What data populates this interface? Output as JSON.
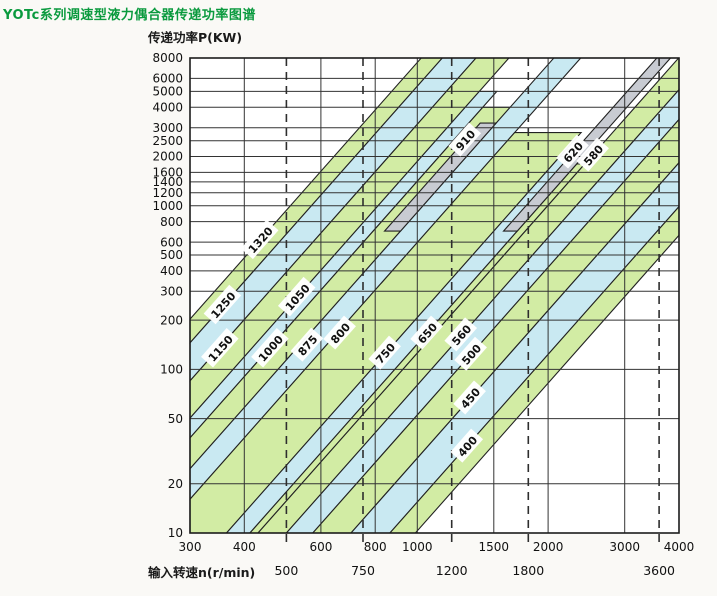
{
  "page_title": "YOTc系列调速型液力偶合器传递功率图谱",
  "chart_data": {
    "type": "area",
    "title": "YOTc系列调速型液力偶合器传递功率图谱",
    "xlabel": "输入转速n(r/min)",
    "ylabel": "传递功率P(KW)",
    "x_axis": {
      "min": 300,
      "max": 4000,
      "scale": "log",
      "ticks_major": [
        300,
        400,
        600,
        800,
        1000,
        1500,
        2000,
        3000,
        4000
      ],
      "ticks_dashed": [
        500,
        750,
        1200,
        1800,
        3600
      ]
    },
    "y_axis": {
      "min": 10,
      "max": 8000,
      "scale": "log",
      "ticks": [
        8000,
        6000,
        5000,
        4000,
        3000,
        2500,
        2000,
        1600,
        1400,
        1200,
        1000,
        800,
        600,
        500,
        400,
        300,
        200,
        100,
        50,
        20,
        10
      ]
    },
    "grid": true,
    "band_slope_exponent": 3,
    "legend_note": "each diagonal band = one coupling size; P = 10*(n/n10)^3 between n10_from and n10_to",
    "bands": [
      {
        "model": "1320",
        "color": "green",
        "n10_from": 110,
        "n10_to": 123,
        "min_kw": 10,
        "max_kw": 8000,
        "label_at": [
          435,
          620
        ]
      },
      {
        "model": "1250",
        "color": "blue",
        "n10_from": 123,
        "n10_to": 147,
        "min_kw": 10,
        "max_kw": 8000,
        "label_at": [
          357,
          248
        ]
      },
      {
        "model": "1150",
        "color": "green",
        "n10_from": 147,
        "n10_to": 175,
        "min_kw": 10,
        "max_kw": 8000,
        "label_at": [
          352,
          135
        ]
      },
      {
        "model": "1050",
        "color": "blue",
        "n10_from": 175,
        "n10_to": 192,
        "min_kw": 10,
        "max_kw": 5000,
        "label_at": [
          529,
          277
        ]
      },
      {
        "model": "1000",
        "color": "green",
        "n10_from": 192,
        "n10_to": 222,
        "min_kw": 10,
        "max_kw": 4000,
        "label_at": [
          459,
          135
        ]
      },
      {
        "model": "875",
        "color": "blue",
        "n10_from": 222,
        "n10_to": 256,
        "min_kw": 10,
        "max_kw": 8000,
        "label_at": [
          558,
          141
        ]
      },
      {
        "model": "800",
        "color": "green",
        "n10_from": 256,
        "n10_to": 364,
        "min_kw": 10,
        "max_kw": 2800,
        "label_at": [
          664,
          167
        ]
      },
      {
        "model": "750",
        "color": "blue",
        "n10_from": 364,
        "n10_to": 412,
        "min_kw": 10,
        "max_kw": 2200,
        "label_at": [
          843,
          126
        ]
      },
      {
        "model": "650",
        "color": "green",
        "n10_from": 412,
        "n10_to": 430,
        "min_kw": 10,
        "max_kw": 1800,
        "label_at": [
          1053,
          167
        ]
      },
      {
        "model": "580",
        "color": "green",
        "n10_from": 430,
        "n10_to": 500,
        "min_kw": 10,
        "max_kw": 8000,
        "label_at": [
          2536,
          2046
        ]
      },
      {
        "model": "560",
        "color": "blue",
        "n10_from": 500,
        "n10_to": 575,
        "min_kw": 10,
        "max_kw": 8000,
        "label_at": [
          1261,
          163
        ]
      },
      {
        "model": "500",
        "color": "green",
        "n10_from": 575,
        "n10_to": 704,
        "min_kw": 10,
        "max_kw": 8000,
        "label_at": [
          1329,
          124
        ]
      },
      {
        "model": "450",
        "color": "blue",
        "n10_from": 704,
        "n10_to": 865,
        "min_kw": 10,
        "max_kw": 8000,
        "label_at": [
          1322,
          67
        ]
      },
      {
        "model": "400",
        "color": "green",
        "n10_from": 865,
        "n10_to": 990,
        "min_kw": 10,
        "max_kw": 8000,
        "label_at": [
          1302,
          34
        ]
      },
      {
        "model": "910",
        "color": "gray",
        "n10_from": 204,
        "n10_to": 222,
        "min_kw": 700,
        "max_kw": 3200,
        "label_at": [
          1288,
          2525
        ]
      },
      {
        "model": "620",
        "color": "gray",
        "n10_from": 383,
        "n10_to": 412,
        "min_kw": 700,
        "max_kw": 8000,
        "label_at": [
          2279,
          2133
        ]
      }
    ],
    "colors": {
      "band_green": "#d2ecA4",
      "band_blue": "#c9e9f2",
      "band_gray": "#c8cbd2",
      "band_line": "#222222",
      "grid_line": "#333333",
      "title_green": "#0a9a3e",
      "plot_bg": "#ffffff",
      "page_bg": "#faf9f6"
    }
  }
}
